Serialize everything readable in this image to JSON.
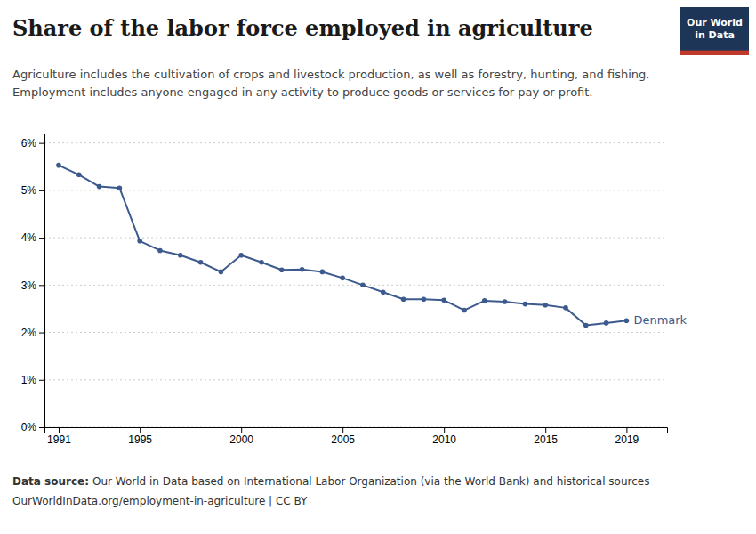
{
  "chart_data": {
    "type": "line",
    "title": "Share of the labor force employed in agriculture",
    "subtitle": [
      "Agriculture includes the cultivation of crops and livestock production, as well as forestry, hunting, and fishing.",
      "Employment includes anyone engaged in any activity to produce goods or services for pay or profit."
    ],
    "annotations": [
      "Data source:",
      "Our World in Data based on International Labor Organization (via the World Bank) and historical sources",
      "OurWorldInData.org/employment-in-agriculture | CC BY",
      "Our World",
      "in Data"
    ],
    "x": [
      1991,
      1992,
      1993,
      1994,
      1995,
      1996,
      1997,
      1998,
      1999,
      2000,
      2001,
      2002,
      2003,
      2004,
      2005,
      2006,
      2007,
      2008,
      2009,
      2010,
      2011,
      2012,
      2013,
      2014,
      2015,
      2016,
      2017,
      2018,
      2019
    ],
    "series": [
      {
        "name": "Denmark",
        "color": "#3d5a8e",
        "marker": "circle",
        "values": [
          0.0553,
          0.0533,
          0.0508,
          0.0505,
          0.0393,
          0.0373,
          0.0363,
          0.0348,
          0.0328,
          0.0363,
          0.0348,
          0.0332,
          0.0333,
          0.0328,
          0.0315,
          0.03,
          0.0285,
          0.027,
          0.027,
          0.0268,
          0.0247,
          0.0267,
          0.0265,
          0.026,
          0.0258,
          0.0252,
          0.0215,
          0.022,
          0.0225
        ]
      }
    ],
    "xlim": [
      1990.3,
      2021.0
    ],
    "xticks": [
      1991,
      1995,
      2000,
      2005,
      2010,
      2015,
      2019
    ],
    "ylim": [
      0.0,
      0.062
    ],
    "yticks": [
      {
        "value": 0.0,
        "label": "0%"
      },
      {
        "value": 0.01,
        "label": "1%"
      },
      {
        "value": 0.02,
        "label": "2%"
      },
      {
        "value": 0.03,
        "label": "3%"
      },
      {
        "value": 0.04,
        "label": "4%"
      },
      {
        "value": 0.05,
        "label": "5%"
      },
      {
        "value": 0.06,
        "label": "6%"
      }
    ],
    "grid": true
  }
}
